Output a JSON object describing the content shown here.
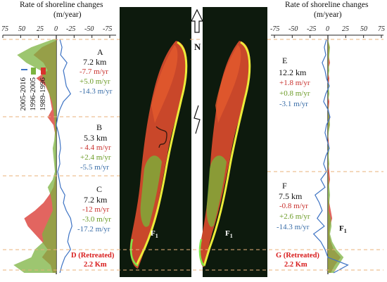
{
  "chart_data": [
    {
      "type": "line",
      "panel": "left",
      "title": "Rate of shoreline changes",
      "units": "(m/year)",
      "x_ticks": [
        "75",
        "50",
        "25",
        "0",
        "-25",
        "-50",
        "-75"
      ],
      "xlim": [
        75,
        -75
      ],
      "legend": [
        {
          "name": "1989-1996",
          "color": "#d8312b"
        },
        {
          "name": "1996-2005",
          "color": "#7cb340"
        },
        {
          "name": "2005-2016",
          "color": "#3d73c4"
        }
      ],
      "segments": [
        {
          "name": "A",
          "length": "7.2 km",
          "rates": [
            "-7.7 m/yr",
            "+5.0 m/yr",
            "-14.3 m/yr"
          ]
        },
        {
          "name": "B",
          "length": "5.3 km",
          "rates": [
            "- 4.4 m/yr",
            "+2.4 m/yr",
            "-5.5 m/yr"
          ]
        },
        {
          "name": "C",
          "length": "7.2 km",
          "rates": [
            "-12 m/yr",
            "-3.0 m/yr",
            "-17.2 m/yr"
          ]
        },
        {
          "name": "D (Retreated)",
          "length": "2.2 Km",
          "rates": []
        }
      ],
      "series": [
        {
          "name": "1989-1996",
          "values": [
            -3,
            20,
            32,
            18,
            12,
            28,
            15,
            10,
            8,
            6,
            12,
            4,
            2,
            0,
            0,
            0,
            0,
            0,
            2,
            4,
            10,
            18,
            30,
            45,
            40,
            30,
            20,
            12,
            20,
            8,
            5
          ]
        },
        {
          "name": "1996-2005",
          "values": [
            5,
            35,
            55,
            42,
            22,
            18,
            14,
            10,
            6,
            4,
            3,
            2,
            2,
            3,
            5,
            4,
            3,
            2,
            5,
            12,
            8,
            6,
            5,
            10,
            15,
            20,
            18,
            30,
            35,
            60,
            45
          ]
        },
        {
          "name": "2005-2016",
          "values": [
            -5,
            -8,
            -6,
            -15,
            -10,
            -12,
            -14,
            -20,
            -10,
            -5,
            -2,
            0,
            -3,
            -5,
            -6,
            -4,
            -5,
            -2,
            -4,
            -6,
            -12,
            -10,
            -14,
            -20,
            -22,
            -18,
            -16,
            -20,
            -12,
            -8,
            -5
          ]
        }
      ]
    },
    {
      "type": "line",
      "panel": "right",
      "title": "Rate of shoreline changes",
      "units": "(m/year)",
      "x_ticks": [
        "-75",
        "-50",
        "-25",
        "0",
        "25",
        "50",
        "75"
      ],
      "xlim": [
        -75,
        75
      ],
      "segments": [
        {
          "name": "E",
          "length": "12.2 km",
          "rates": [
            "+1.8 m/yr",
            "+0.8 m/yr",
            "-3.1 m/yr"
          ]
        },
        {
          "name": "F",
          "length": "7.5 km",
          "rates": [
            "-0.8 m/yr",
            "+2.6 m/yr",
            "-14.3 m/yr"
          ]
        },
        {
          "name": "G (Retreated)",
          "length": "2.2 Km",
          "rates": []
        }
      ],
      "series": [
        {
          "name": "1989-1996",
          "values": [
            0,
            2,
            1,
            3,
            0,
            2,
            1,
            0,
            2,
            1,
            3,
            2,
            0,
            1,
            2,
            0,
            1,
            2,
            3,
            1,
            0,
            2,
            4,
            6,
            3,
            2,
            4,
            8,
            18,
            10,
            4
          ]
        },
        {
          "name": "1996-2005",
          "values": [
            0,
            3,
            2,
            1,
            2,
            0,
            1,
            2,
            0,
            1,
            2,
            3,
            1,
            0,
            2,
            1,
            2,
            0,
            1,
            2,
            3,
            2,
            1,
            4,
            5,
            3,
            6,
            12,
            22,
            15,
            8
          ]
        },
        {
          "name": "2005-2016",
          "values": [
            -2,
            -5,
            -3,
            -8,
            -4,
            -2,
            2,
            -3,
            -6,
            0,
            3,
            -2,
            -4,
            -1,
            2,
            -3,
            -6,
            -2,
            -10,
            -4,
            -18,
            -12,
            -8,
            -15,
            -5,
            -20,
            -10,
            -4,
            0,
            28,
            8
          ]
        }
      ]
    }
  ],
  "map": {
    "north_label": "N",
    "marker_left": "F",
    "marker_left_sub": "1",
    "marker_right": "F",
    "marker_right_sub": "1"
  }
}
